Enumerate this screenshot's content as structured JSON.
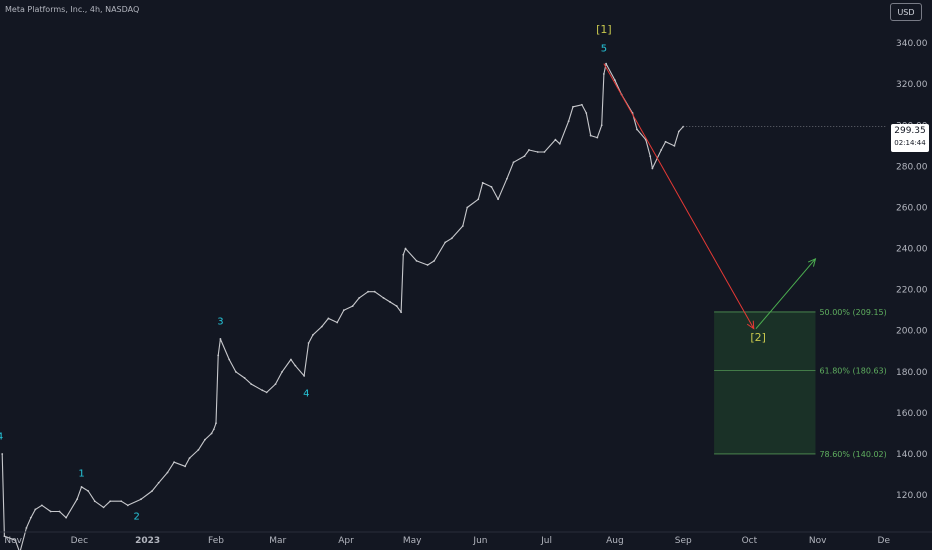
{
  "header": {
    "title": "Meta Platforms, Inc., 4h, NASDAQ",
    "currency": "USD"
  },
  "price_label": {
    "price": "299.35",
    "countdown": "02:14:44"
  },
  "colors": {
    "background": "#131722",
    "price_line": "#c7c8cc",
    "wave_label": "#26c6da",
    "degree_label": "#c8c84e",
    "down_arrow": "#e53935",
    "up_arrow": "#4caf50",
    "fib_zone": "#1e3b2a",
    "fib_text": "#5fae5f"
  },
  "chart_data": {
    "type": "line",
    "title": "Meta Platforms, Inc., 4h, NASDAQ",
    "xlabel": "",
    "ylabel": "",
    "ylim": [
      103,
      361
    ],
    "y_ticks": [
      120,
      140,
      160,
      180,
      200,
      220,
      240,
      260,
      280,
      300,
      320,
      340
    ],
    "y_tick_labels": [
      "120.00",
      "140.00",
      "160.00",
      "180.00",
      "200.00",
      "220.00",
      "240.00",
      "260.00",
      "280.00",
      "300.00",
      "320.00",
      "340.00"
    ],
    "x_tick_labels": [
      "Nov",
      "Dec",
      "2023",
      "Feb",
      "Mar",
      "Apr",
      "May",
      "Jun",
      "Jul",
      "Aug",
      "Sep",
      "Oct",
      "Nov",
      "De"
    ],
    "x_tick_dates": [
      "2022-11-01",
      "2022-12-01",
      "2023-01-01",
      "2023-02-01",
      "2023-03-01",
      "2023-04-01",
      "2023-05-01",
      "2023-06-01",
      "2023-07-01",
      "2023-08-01",
      "2023-09-01",
      "2023-10-01",
      "2023-11-01",
      "2023-12-01"
    ],
    "x_date_range": [
      "2022-10-26",
      "2023-12-02"
    ],
    "grid": false,
    "last_price": 299.35,
    "series": [
      {
        "points": [
          [
            "2022-10-27",
            140
          ],
          [
            "2022-10-28",
            100
          ],
          [
            "2022-11-02",
            98
          ],
          [
            "2022-11-04",
            92
          ],
          [
            "2022-11-07",
            104
          ],
          [
            "2022-11-09",
            109
          ],
          [
            "2022-11-11",
            113
          ],
          [
            "2022-11-14",
            115
          ],
          [
            "2022-11-18",
            112
          ],
          [
            "2022-11-22",
            112
          ],
          [
            "2022-11-25",
            109
          ],
          [
            "2022-11-30",
            118
          ],
          [
            "2022-12-02",
            124
          ],
          [
            "2022-12-05",
            122
          ],
          [
            "2022-12-08",
            117
          ],
          [
            "2022-12-12",
            114
          ],
          [
            "2022-12-15",
            117
          ],
          [
            "2022-12-20",
            117
          ],
          [
            "2022-12-23",
            115
          ],
          [
            "2022-12-29",
            118
          ],
          [
            "2023-01-03",
            122
          ],
          [
            "2023-01-06",
            126
          ],
          [
            "2023-01-10",
            131
          ],
          [
            "2023-01-13",
            136
          ],
          [
            "2023-01-18",
            134
          ],
          [
            "2023-01-20",
            138
          ],
          [
            "2023-01-24",
            142
          ],
          [
            "2023-01-27",
            147
          ],
          [
            "2023-01-30",
            150
          ],
          [
            "2023-01-31",
            152
          ],
          [
            "2023-02-01",
            155
          ],
          [
            "2023-02-02",
            188
          ],
          [
            "2023-02-03",
            196
          ],
          [
            "2023-02-07",
            186
          ],
          [
            "2023-02-10",
            180
          ],
          [
            "2023-02-14",
            177
          ],
          [
            "2023-02-17",
            174
          ],
          [
            "2023-02-22",
            171
          ],
          [
            "2023-02-24",
            170
          ],
          [
            "2023-02-28",
            174
          ],
          [
            "2023-03-03",
            180
          ],
          [
            "2023-03-07",
            186
          ],
          [
            "2023-03-09",
            183
          ],
          [
            "2023-03-13",
            178
          ],
          [
            "2023-03-15",
            194
          ],
          [
            "2023-03-17",
            198
          ],
          [
            "2023-03-21",
            202
          ],
          [
            "2023-03-24",
            206
          ],
          [
            "2023-03-28",
            204
          ],
          [
            "2023-03-31",
            210
          ],
          [
            "2023-04-04",
            212
          ],
          [
            "2023-04-07",
            216
          ],
          [
            "2023-04-11",
            219
          ],
          [
            "2023-04-14",
            219
          ],
          [
            "2023-04-18",
            216
          ],
          [
            "2023-04-21",
            214
          ],
          [
            "2023-04-24",
            212
          ],
          [
            "2023-04-26",
            209
          ],
          [
            "2023-04-27",
            237
          ],
          [
            "2023-04-28",
            240
          ],
          [
            "2023-05-03",
            234
          ],
          [
            "2023-05-08",
            232
          ],
          [
            "2023-05-11",
            234
          ],
          [
            "2023-05-16",
            243
          ],
          [
            "2023-05-19",
            245
          ],
          [
            "2023-05-24",
            251
          ],
          [
            "2023-05-26",
            260
          ],
          [
            "2023-05-31",
            264
          ],
          [
            "2023-06-02",
            272
          ],
          [
            "2023-06-06",
            270
          ],
          [
            "2023-06-09",
            264
          ],
          [
            "2023-06-13",
            274
          ],
          [
            "2023-06-16",
            282
          ],
          [
            "2023-06-21",
            285
          ],
          [
            "2023-06-23",
            288
          ],
          [
            "2023-06-27",
            287
          ],
          [
            "2023-06-30",
            287
          ],
          [
            "2023-07-05",
            293
          ],
          [
            "2023-07-07",
            291
          ],
          [
            "2023-07-11",
            302
          ],
          [
            "2023-07-13",
            309
          ],
          [
            "2023-07-17",
            310
          ],
          [
            "2023-07-19",
            306
          ],
          [
            "2023-07-21",
            295
          ],
          [
            "2023-07-24",
            294
          ],
          [
            "2023-07-26",
            300
          ],
          [
            "2023-07-27",
            325
          ],
          [
            "2023-07-28",
            330
          ],
          [
            "2023-08-01",
            322
          ],
          [
            "2023-08-04",
            315
          ],
          [
            "2023-08-09",
            306
          ],
          [
            "2023-08-11",
            298
          ],
          [
            "2023-08-15",
            293
          ],
          [
            "2023-08-17",
            285
          ],
          [
            "2023-08-18",
            279
          ],
          [
            "2023-08-22",
            288
          ],
          [
            "2023-08-24",
            292
          ],
          [
            "2023-08-28",
            290
          ],
          [
            "2023-08-30",
            297
          ],
          [
            "2023-09-01",
            299.35
          ]
        ]
      }
    ],
    "wave_labels": [
      {
        "text": "4",
        "date": "2022-10-26",
        "price": 147
      },
      {
        "text": "1",
        "date": "2022-12-02",
        "price": 129
      },
      {
        "text": "2",
        "date": "2022-12-27",
        "price": 108
      },
      {
        "text": "3",
        "date": "2023-02-03",
        "price": 203
      },
      {
        "text": "4",
        "date": "2023-03-14",
        "price": 168
      },
      {
        "text": "5",
        "date": "2023-07-27",
        "price": 336
      }
    ],
    "degree_labels": [
      {
        "text": "[1]",
        "date": "2023-07-27",
        "price": 345
      },
      {
        "text": "[2]",
        "date": "2023-10-05",
        "price": 195
      }
    ],
    "projection": {
      "down": {
        "from": [
          "2023-07-27",
          330
        ],
        "to": [
          "2023-10-03",
          201
        ]
      },
      "up": {
        "from": [
          "2023-10-04",
          201
        ],
        "to": [
          "2023-10-31",
          235
        ]
      }
    },
    "fib_levels": [
      {
        "label": "50.00% (209.15)",
        "ratio": "50.00%",
        "price": 209.15
      },
      {
        "label": "61.80% (180.63)",
        "ratio": "61.80%",
        "price": 180.63
      },
      {
        "label": "78.60% (140.02)",
        "ratio": "78.60%",
        "price": 140.02
      }
    ],
    "fib_zone_dates": [
      "2023-09-15",
      "2023-10-31"
    ]
  }
}
